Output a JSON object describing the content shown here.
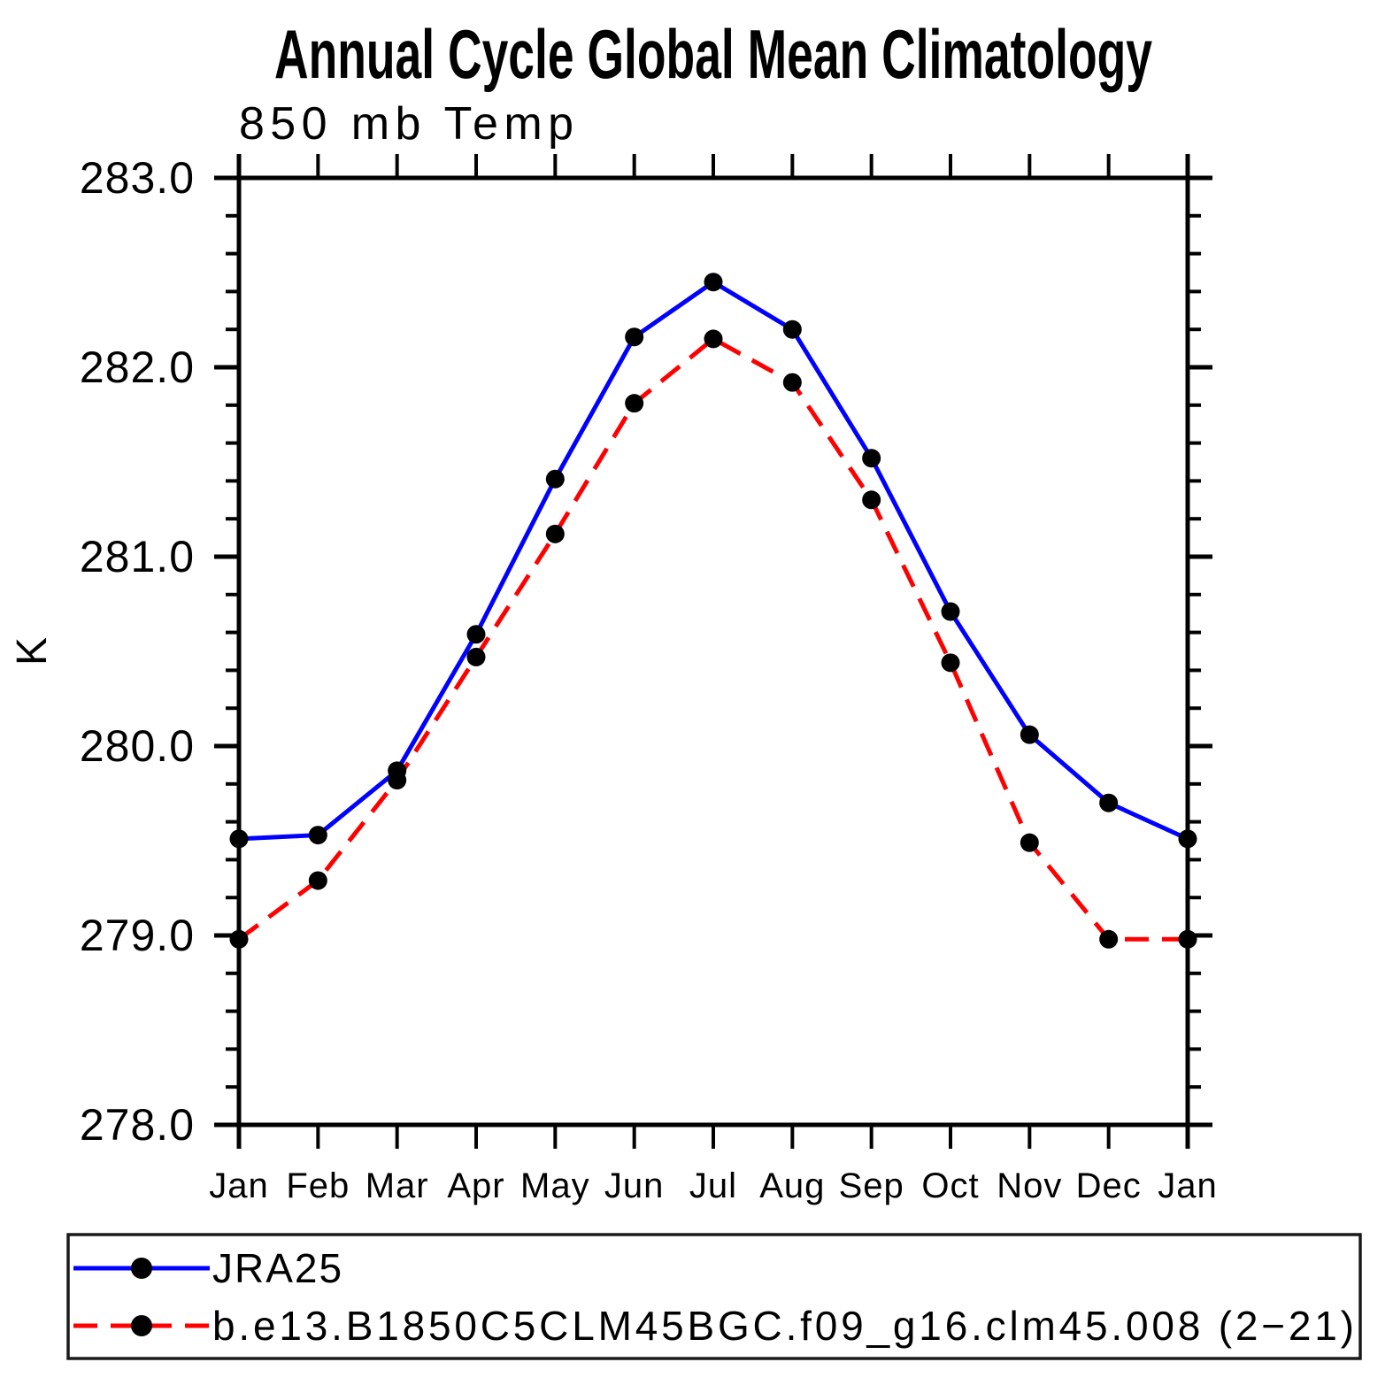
{
  "page": {
    "background": "#ffffff"
  },
  "chart_data": {
    "type": "line",
    "title": "Annual Cycle Global Mean Climatology",
    "subtitle": "850 mb Temp",
    "ylabel": "K",
    "xlabel": "",
    "ylim": [
      278.0,
      283.0
    ],
    "y_major_step": 1.0,
    "y_minor_step": 0.2,
    "y_tick_labels": [
      "283.0",
      "282.0",
      "281.0",
      "280.0",
      "279.0",
      "278.0"
    ],
    "x_tick_labels": [
      "Jan",
      "Feb",
      "Mar",
      "Apr",
      "May",
      "Jun",
      "Jul",
      "Aug",
      "Sep",
      "Oct",
      "Nov",
      "Dec",
      "Jan"
    ],
    "grid": false,
    "legend_position": "bottom",
    "axis_color": "#000000",
    "marker_color": "#000000",
    "series": [
      {
        "name": "JRA25",
        "color": "#0000ff",
        "line_style": "solid",
        "marker": "filled-circle",
        "values": [
          279.51,
          279.53,
          279.87,
          280.59,
          281.41,
          282.16,
          282.45,
          282.2,
          281.52,
          280.71,
          280.06,
          279.7,
          279.51
        ]
      },
      {
        "name": "b.e13.B1850C5CLM45BGC.f09_g16.clm45.008 (2−21)",
        "color": "#ff0000",
        "line_style": "dashed",
        "marker": "filled-circle",
        "values": [
          278.98,
          279.29,
          279.82,
          280.47,
          281.12,
          281.81,
          282.15,
          281.92,
          281.3,
          280.44,
          279.49,
          278.98,
          278.98
        ]
      }
    ]
  }
}
